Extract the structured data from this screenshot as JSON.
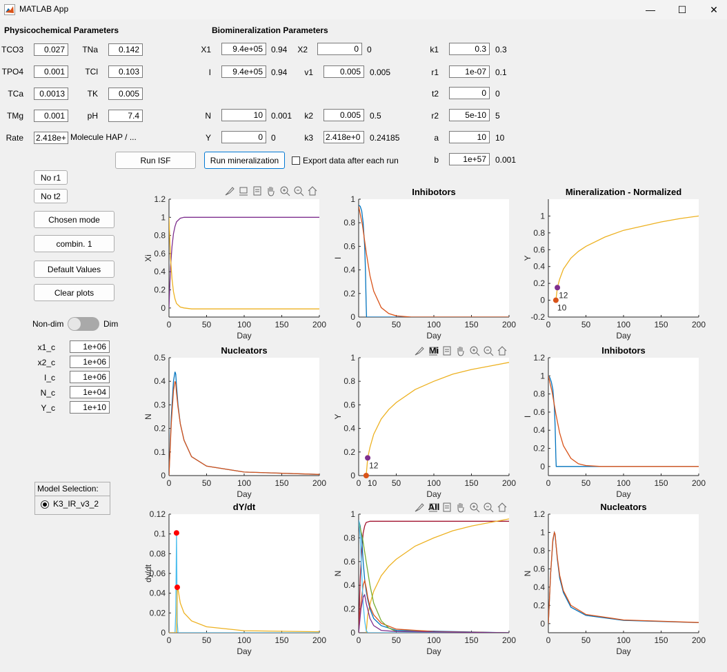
{
  "window": {
    "title": "MATLAB App",
    "minimize": "—",
    "maximize": "☐",
    "close": "✕"
  },
  "physico": {
    "header": "Physicochemical Parameters",
    "rows": [
      {
        "l1": "TCO3",
        "v1": "0.027",
        "l2": "TNa",
        "v2": "0.142"
      },
      {
        "l1": "TPO4",
        "v1": "0.001",
        "l2": "TCl",
        "v2": "0.103"
      },
      {
        "l1": "TCa",
        "v1": "0.0013",
        "l2": "TK",
        "v2": "0.005"
      },
      {
        "l1": "TMg",
        "v1": "0.001",
        "l2": "pH",
        "v2": "7.4"
      }
    ],
    "rate_label": "Rate",
    "rate_value": "2.418e+",
    "molecule_label": "Molecule HAP / ..."
  },
  "bio": {
    "header": "Biomineralization Parameters",
    "X1": {
      "label": "X1",
      "value": "9.4e+05",
      "extra": "0.94"
    },
    "X2": {
      "label": "X2",
      "value": "0",
      "extra": "0"
    },
    "I": {
      "label": "I",
      "value": "9.4e+05",
      "extra": "0.94"
    },
    "v1": {
      "label": "v1",
      "value": "0.005",
      "extra": "0.005"
    },
    "N": {
      "label": "N",
      "value": "10",
      "extra": "0.001"
    },
    "k2": {
      "label": "k2",
      "value": "0.005",
      "extra": "0.5"
    },
    "Y": {
      "label": "Y",
      "value": "0",
      "extra": "0"
    },
    "k3": {
      "label": "k3",
      "value": "2.418e+0",
      "extra": "0.24185"
    },
    "k1": {
      "label": "k1",
      "value": "0.3",
      "extra": "0.3"
    },
    "r1": {
      "label": "r1",
      "value": "1e-07",
      "extra": "0.1"
    },
    "t2": {
      "label": "t2",
      "value": "0",
      "extra": "0"
    },
    "r2": {
      "label": "r2",
      "value": "5e-10",
      "extra": "5"
    },
    "a": {
      "label": "a",
      "value": "10",
      "extra": "10"
    },
    "b": {
      "label": "b",
      "value": "1e+57",
      "extra": "0.001"
    }
  },
  "actions": {
    "run_isf": "Run ISF",
    "run_mineralization": "Run mineralization",
    "export_label": "Export data after each run"
  },
  "sidebar": {
    "no_r1": "No r1",
    "no_t2": "No t2",
    "chosen_mode": "Chosen mode",
    "combin": "combin. 1",
    "default_values": "Default Values",
    "clear_plots": "Clear plots",
    "non_dim": "Non-dim",
    "dim": "Dim",
    "scales": [
      {
        "label": "x1_c",
        "value": "1e+06"
      },
      {
        "label": "x2_c",
        "value": "1e+06"
      },
      {
        "label": "I_c",
        "value": "1e+06"
      },
      {
        "label": "N_c",
        "value": "1e+04"
      },
      {
        "label": "Y_c",
        "value": "1e+10"
      }
    ],
    "model_selection_title": "Model Selection:",
    "model_option": "K3_IR_v3_2"
  },
  "colors": {
    "blue": "#0072bd",
    "orange": "#d95319",
    "yellow": "#edb120",
    "purple": "#7e2f8e",
    "green": "#77ac30",
    "cyan": "#4dbeee",
    "darkred": "#a2142f",
    "red": "#ff0000"
  },
  "chart_data": [
    {
      "id": "xi",
      "type": "line",
      "title": "",
      "xlabel": "Day",
      "ylabel": "Xi",
      "xlim": [
        0,
        200
      ],
      "ylim": [
        -0.1,
        1.2
      ],
      "yticks": [
        0,
        0.2,
        0.4,
        0.6,
        0.8,
        1,
        1.2
      ],
      "xticks": [
        0,
        50,
        100,
        150,
        200
      ],
      "series": [
        {
          "color": "purple",
          "x": [
            0,
            2,
            4,
            6,
            8,
            10,
            15,
            20,
            30,
            200
          ],
          "y": [
            0,
            0.45,
            0.68,
            0.82,
            0.9,
            0.95,
            0.99,
            1.0,
            1.0,
            1.0
          ]
        },
        {
          "color": "yellow",
          "x": [
            0,
            2,
            4,
            6,
            8,
            10,
            15,
            20,
            30,
            200
          ],
          "y": [
            1.0,
            0.55,
            0.32,
            0.18,
            0.1,
            0.05,
            0.01,
            0.0,
            -0.01,
            -0.01
          ]
        }
      ]
    },
    {
      "id": "inhib1",
      "type": "line",
      "title": "Inhibotors",
      "xlabel": "Day",
      "ylabel": "I",
      "xlim": [
        0,
        200
      ],
      "ylim": [
        0,
        1
      ],
      "yticks": [
        0,
        0.2,
        0.4,
        0.6,
        0.8,
        1
      ],
      "xticks": [
        0,
        50,
        100,
        150,
        200
      ],
      "series": [
        {
          "color": "blue",
          "x": [
            0,
            2,
            4,
            6,
            8,
            9,
            10,
            10.5,
            200
          ],
          "y": [
            0.95,
            0.94,
            0.9,
            0.8,
            0.6,
            0.4,
            0.1,
            0,
            0
          ]
        },
        {
          "color": "orange",
          "x": [
            0,
            5,
            10,
            15,
            20,
            30,
            40,
            50,
            70,
            200
          ],
          "y": [
            0.94,
            0.78,
            0.55,
            0.35,
            0.22,
            0.08,
            0.03,
            0.01,
            0,
            0
          ]
        }
      ]
    },
    {
      "id": "minnorm",
      "type": "line",
      "title": "Mineralization - Normalized",
      "xlabel": "Day",
      "ylabel": "Y",
      "xlim": [
        0,
        200
      ],
      "ylim": [
        -0.2,
        1.2
      ],
      "yticks": [
        -0.2,
        0,
        0.2,
        0.4,
        0.6,
        0.8,
        1
      ],
      "xticks": [
        0,
        50,
        100,
        150,
        200
      ],
      "series": [
        {
          "color": "yellow",
          "x": [
            10,
            12,
            15,
            20,
            30,
            40,
            50,
            75,
            100,
            125,
            150,
            175,
            200
          ],
          "y": [
            0.0,
            0.15,
            0.25,
            0.37,
            0.5,
            0.58,
            0.64,
            0.75,
            0.83,
            0.88,
            0.93,
            0.97,
            1.0
          ]
        }
      ],
      "points": [
        {
          "x": 12,
          "y": 0.15,
          "color": "purple",
          "label": "12"
        },
        {
          "x": 10,
          "y": 0.0,
          "color": "orange",
          "label": "10"
        }
      ]
    },
    {
      "id": "nuc1",
      "type": "line",
      "title": "Nucleators",
      "xlabel": "Day",
      "ylabel": "N",
      "xlim": [
        0,
        200
      ],
      "ylim": [
        0,
        0.5
      ],
      "yticks": [
        0,
        0.1,
        0.2,
        0.3,
        0.4,
        0.5
      ],
      "xticks": [
        0,
        50,
        100,
        150,
        200
      ],
      "series": [
        {
          "color": "blue",
          "x": [
            0,
            3,
            6,
            8,
            9,
            10,
            12,
            15,
            20,
            30,
            50,
            100,
            200
          ],
          "y": [
            0,
            0.25,
            0.4,
            0.44,
            0.43,
            0.38,
            0.3,
            0.22,
            0.15,
            0.08,
            0.04,
            0.015,
            0.005
          ]
        },
        {
          "color": "orange",
          "x": [
            0,
            3,
            6,
            8,
            9,
            10,
            12,
            15,
            20,
            30,
            50,
            100,
            200
          ],
          "y": [
            0,
            0.22,
            0.36,
            0.4,
            0.39,
            0.35,
            0.29,
            0.22,
            0.15,
            0.08,
            0.04,
            0.015,
            0.005
          ]
        }
      ]
    },
    {
      "id": "min",
      "type": "line",
      "title": "Mi",
      "xlabel": "Day",
      "ylabel": "Y",
      "xlim": [
        0,
        200
      ],
      "ylim": [
        0,
        1
      ],
      "yticks": [
        0,
        0.2,
        0.4,
        0.6,
        0.8,
        1
      ],
      "xticks": [
        0,
        50,
        100,
        150,
        200
      ],
      "series": [
        {
          "color": "yellow",
          "x": [
            10,
            12,
            15,
            20,
            30,
            40,
            50,
            75,
            100,
            125,
            150,
            175,
            200
          ],
          "y": [
            0.0,
            0.15,
            0.24,
            0.35,
            0.48,
            0.56,
            0.62,
            0.73,
            0.8,
            0.86,
            0.9,
            0.93,
            0.96
          ]
        }
      ],
      "points": [
        {
          "x": 12,
          "y": 0.15,
          "color": "purple",
          "label": "12"
        },
        {
          "x": 10,
          "y": 0.0,
          "color": "orange",
          "label": "10"
        }
      ]
    },
    {
      "id": "inhib2",
      "type": "line",
      "title": "Inhibotors",
      "xlabel": "Day",
      "ylabel": "I",
      "xlim": [
        0,
        200
      ],
      "ylim": [
        -0.1,
        1.2
      ],
      "yticks": [
        0,
        0.2,
        0.4,
        0.6,
        0.8,
        1,
        1.2
      ],
      "xticks": [
        0,
        50,
        100,
        150,
        200
      ],
      "series": [
        {
          "color": "blue",
          "x": [
            0,
            2,
            4,
            6,
            8,
            9,
            10,
            10.5,
            200
          ],
          "y": [
            1.0,
            0.98,
            0.93,
            0.85,
            0.65,
            0.45,
            0.1,
            0,
            0
          ]
        },
        {
          "color": "orange",
          "x": [
            0,
            5,
            10,
            15,
            20,
            30,
            40,
            50,
            70,
            200
          ],
          "y": [
            1.0,
            0.82,
            0.58,
            0.37,
            0.23,
            0.09,
            0.03,
            0.01,
            0,
            0
          ]
        }
      ]
    },
    {
      "id": "dydt",
      "type": "line",
      "title": "dY/dt",
      "xlabel": "Day",
      "ylabel": "dy/dt",
      "xlim": [
        0,
        200
      ],
      "ylim": [
        0,
        0.12
      ],
      "yticks": [
        0,
        0.02,
        0.04,
        0.06,
        0.08,
        0.1,
        0.12
      ],
      "xticks": [
        0,
        50,
        100,
        150,
        200
      ],
      "series": [
        {
          "color": "cyan",
          "x": [
            0,
            8,
            9,
            10,
            11,
            12,
            200
          ],
          "y": [
            0,
            0,
            0.02,
            0.101,
            0.01,
            0,
            0
          ]
        },
        {
          "color": "yellow",
          "x": [
            0,
            10,
            11,
            12,
            15,
            20,
            30,
            50,
            100,
            200
          ],
          "y": [
            0,
            0,
            0.046,
            0.044,
            0.03,
            0.02,
            0.012,
            0.006,
            0.002,
            0.001
          ]
        }
      ],
      "points": [
        {
          "x": 10,
          "y": 0.101,
          "color": "red",
          "label": ""
        },
        {
          "x": 11,
          "y": 0.046,
          "color": "red",
          "label": ""
        }
      ]
    },
    {
      "id": "all",
      "type": "line",
      "title": "All",
      "xlabel": "Day",
      "ylabel": "N",
      "xlim": [
        0,
        200
      ],
      "ylim": [
        0,
        1
      ],
      "yticks": [
        0,
        0.2,
        0.4,
        0.6,
        0.8,
        1
      ],
      "xticks": [
        0,
        50,
        100,
        150,
        200
      ],
      "series": [
        {
          "color": "darkred",
          "x": [
            0,
            2,
            4,
            6,
            8,
            10,
            15,
            20,
            200
          ],
          "y": [
            0,
            0.45,
            0.7,
            0.84,
            0.9,
            0.93,
            0.94,
            0.94,
            0.94
          ]
        },
        {
          "color": "yellow",
          "x": [
            10,
            12,
            15,
            20,
            30,
            40,
            50,
            75,
            100,
            125,
            150,
            175,
            200
          ],
          "y": [
            0.0,
            0.15,
            0.24,
            0.35,
            0.48,
            0.56,
            0.62,
            0.73,
            0.8,
            0.86,
            0.9,
            0.93,
            0.96
          ]
        },
        {
          "color": "blue",
          "x": [
            0,
            2,
            4,
            6,
            8,
            9,
            10,
            12,
            15,
            20,
            30,
            50,
            200
          ],
          "y": [
            0.95,
            0.9,
            0.8,
            0.6,
            0.45,
            0.4,
            0.35,
            0.28,
            0.2,
            0.12,
            0.06,
            0.02,
            0
          ]
        },
        {
          "color": "orange",
          "x": [
            0,
            3,
            6,
            8,
            10,
            12,
            15,
            20,
            30,
            50,
            100,
            200
          ],
          "y": [
            0,
            0.25,
            0.4,
            0.44,
            0.38,
            0.3,
            0.22,
            0.15,
            0.08,
            0.03,
            0.01,
            0
          ]
        },
        {
          "color": "green",
          "x": [
            0,
            5,
            10,
            15,
            20,
            30,
            40,
            50,
            200
          ],
          "y": [
            0.94,
            0.8,
            0.6,
            0.4,
            0.25,
            0.1,
            0.04,
            0.01,
            0
          ]
        },
        {
          "color": "cyan",
          "x": [
            0,
            2,
            4,
            6,
            8,
            10,
            12,
            200
          ],
          "y": [
            0.95,
            0.8,
            0.5,
            0.25,
            0.1,
            0.02,
            0,
            0
          ]
        },
        {
          "color": "purple",
          "x": [
            0,
            3,
            6,
            8,
            10,
            15,
            20,
            30,
            50,
            200
          ],
          "y": [
            0,
            0.2,
            0.3,
            0.32,
            0.25,
            0.12,
            0.06,
            0.02,
            0.01,
            0
          ]
        }
      ]
    },
    {
      "id": "nuc2",
      "type": "line",
      "title": "Nucleators",
      "xlabel": "Day",
      "ylabel": "N",
      "xlim": [
        0,
        200
      ],
      "ylim": [
        -0.1,
        1.2
      ],
      "yticks": [
        0,
        0.2,
        0.4,
        0.6,
        0.8,
        1,
        1.2
      ],
      "xticks": [
        0,
        50,
        100,
        150,
        200
      ],
      "series": [
        {
          "color": "blue",
          "x": [
            0,
            3,
            6,
            8,
            9,
            10,
            12,
            15,
            20,
            30,
            50,
            100,
            200
          ],
          "y": [
            0,
            0.55,
            0.9,
            1.0,
            0.98,
            0.88,
            0.7,
            0.5,
            0.34,
            0.18,
            0.09,
            0.035,
            0.01
          ]
        },
        {
          "color": "orange",
          "x": [
            0,
            3,
            6,
            8,
            9,
            10,
            12,
            15,
            20,
            30,
            50,
            100,
            200
          ],
          "y": [
            0,
            0.55,
            0.92,
            1.0,
            0.98,
            0.88,
            0.72,
            0.53,
            0.36,
            0.2,
            0.1,
            0.04,
            0.012
          ]
        }
      ]
    }
  ]
}
